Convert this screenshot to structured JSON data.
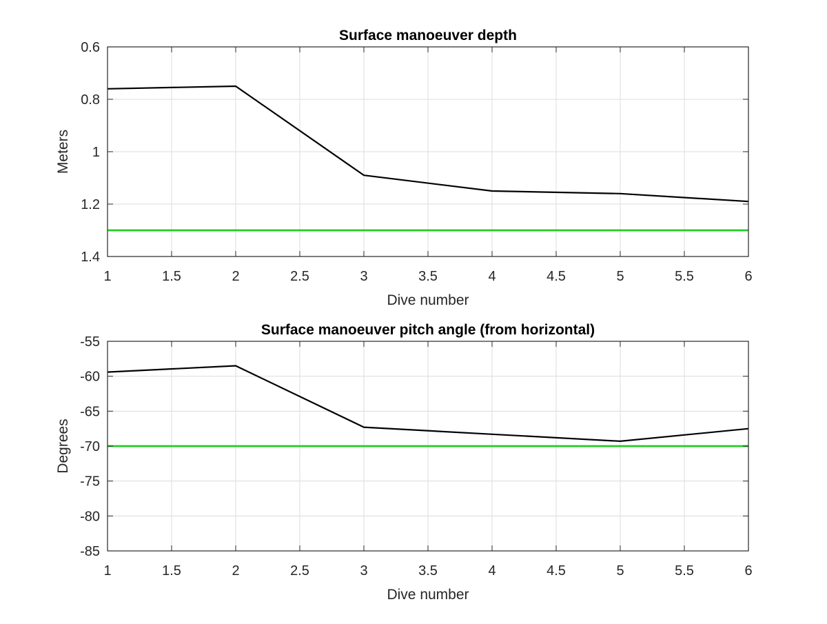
{
  "chart_data": [
    {
      "type": "line",
      "title": "Surface manoeuver depth",
      "xlabel": "Dive number",
      "ylabel": "Meters",
      "xlim": [
        1,
        6
      ],
      "ylim": [
        0.6,
        1.4
      ],
      "y_reversed": true,
      "grid": true,
      "xticks": [
        1,
        1.5,
        2,
        2.5,
        3,
        3.5,
        4,
        4.5,
        5,
        5.5,
        6
      ],
      "yticks": [
        0.6,
        0.8,
        1,
        1.2,
        1.4
      ],
      "series": [
        {
          "color": "#000000",
          "x": [
            1,
            2,
            3,
            4,
            5,
            6
          ],
          "y": [
            0.76,
            0.75,
            1.09,
            1.15,
            1.16,
            1.19
          ]
        },
        {
          "color": "#22cc22",
          "x": [
            1,
            6
          ],
          "y": [
            1.3,
            1.3
          ]
        }
      ]
    },
    {
      "type": "line",
      "title": "Surface manoeuver pitch angle (from horizontal)",
      "xlabel": "Dive number",
      "ylabel": "Degrees",
      "xlim": [
        1,
        6
      ],
      "ylim": [
        -85,
        -55
      ],
      "y_reversed": false,
      "grid": true,
      "xticks": [
        1,
        1.5,
        2,
        2.5,
        3,
        3.5,
        4,
        4.5,
        5,
        5.5,
        6
      ],
      "yticks": [
        -55,
        -60,
        -65,
        -70,
        -75,
        -80,
        -85
      ],
      "series": [
        {
          "color": "#000000",
          "x": [
            1,
            2,
            3,
            4,
            5,
            6
          ],
          "y": [
            -59.4,
            -58.5,
            -67.3,
            -68.3,
            -69.3,
            -67.5
          ]
        },
        {
          "color": "#22cc22",
          "x": [
            1,
            6
          ],
          "y": [
            -70,
            -70
          ]
        }
      ]
    }
  ]
}
